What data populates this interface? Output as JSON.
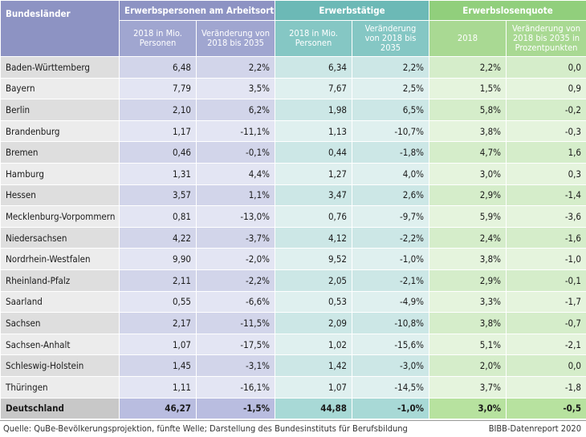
{
  "header": {
    "col_label": "Bundesländer",
    "groups": [
      "Erwerbspersonen am Arbeitsort",
      "Erwerbstätige",
      "Erwerbslosenquote"
    ],
    "subheaders": [
      "2018 in Mio. Personen",
      "Veränderung von 2018 bis 2035",
      "2018 in Mio. Personen",
      "Veränderung von 2018 bis 2035",
      "2018",
      "Veränderung von 2018 bis 2035 in Prozentpunkten"
    ]
  },
  "rows": [
    [
      "Baden-Württemberg",
      "6,48",
      "2,2%",
      "6,34",
      "2,2%",
      "2,2%",
      "0,0"
    ],
    [
      "Bayern",
      "7,79",
      "3,5%",
      "7,67",
      "2,5%",
      "1,5%",
      "0,9"
    ],
    [
      "Berlin",
      "2,10",
      "6,2%",
      "1,98",
      "6,5%",
      "5,8%",
      "-0,2"
    ],
    [
      "Brandenburg",
      "1,17",
      "-11,1%",
      "1,13",
      "-10,7%",
      "3,8%",
      "-0,3"
    ],
    [
      "Bremen",
      "0,46",
      "-0,1%",
      "0,44",
      "-1,8%",
      "4,7%",
      "1,6"
    ],
    [
      "Hamburg",
      "1,31",
      "4,4%",
      "1,27",
      "4,0%",
      "3,0%",
      "0,3"
    ],
    [
      "Hessen",
      "3,57",
      "1,1%",
      "3,47",
      "2,6%",
      "2,9%",
      "-1,4"
    ],
    [
      "Mecklenburg-Vorpommern",
      "0,81",
      "-13,0%",
      "0,76",
      "-9,7%",
      "5,9%",
      "-3,6"
    ],
    [
      "Niedersachsen",
      "4,22",
      "-3,7%",
      "4,12",
      "-2,2%",
      "2,4%",
      "-1,6"
    ],
    [
      "Nordrhein-Westfalen",
      "9,90",
      "-2,0%",
      "9,52",
      "-1,0%",
      "3,8%",
      "-1,0"
    ],
    [
      "Rheinland-Pfalz",
      "2,11",
      "-2,2%",
      "2,05",
      "-2,1%",
      "2,9%",
      "-0,1"
    ],
    [
      "Saarland",
      "0,55",
      "-6,6%",
      "0,53",
      "-4,9%",
      "3,3%",
      "-1,7"
    ],
    [
      "Sachsen",
      "2,17",
      "-11,5%",
      "2,09",
      "-10,8%",
      "3,8%",
      "-0,7"
    ],
    [
      "Sachsen-Anhalt",
      "1,07",
      "-17,5%",
      "1,02",
      "-15,6%",
      "5,1%",
      "-2,1"
    ],
    [
      "Schleswig-Holstein",
      "1,45",
      "-3,1%",
      "1,42",
      "-3,0%",
      "2,0%",
      "0,0"
    ],
    [
      "Thüringen",
      "1,11",
      "-16,1%",
      "1,07",
      "-14,5%",
      "3,7%",
      "-1,8"
    ]
  ],
  "total": [
    "Deutschland",
    "46,27",
    "-1,5%",
    "44,88",
    "-1,0%",
    "3,0%",
    "-0,5"
  ],
  "footer": {
    "source": "Quelle: QuBe-Bevölkerungsprojektion, fünfte Welle; Darstellung des Bundesinstituts für Berufsbildung",
    "credit": "BIBB-Datenreport 2020"
  }
}
